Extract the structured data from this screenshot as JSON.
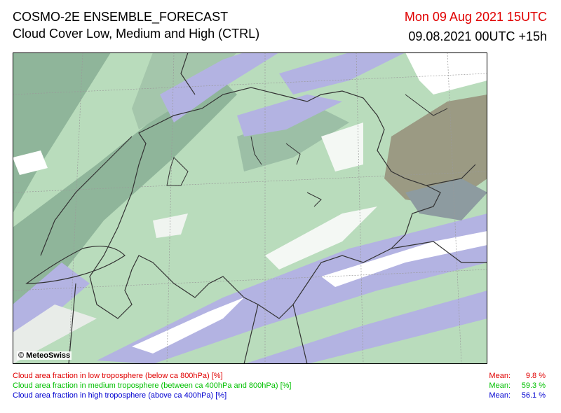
{
  "header": {
    "title": "COSMO-2E ENSEMBLE_FORECAST",
    "subtitle": "Cloud Cover Low, Medium and High (CTRL)",
    "valid_time": "Mon 09 Aug 2021 15UTC",
    "run_time": "09.08.2021 00UTC +15h"
  },
  "map": {
    "credit": "© MeteoSwiss"
  },
  "legend": [
    {
      "label": "Cloud area fraction in low troposphere (below ca 800hPa) [%]",
      "mean_label": "Mean:",
      "mean": "9.8 %",
      "color": "#e00000"
    },
    {
      "label": "Cloud area fraction in medium troposphere (between ca 400hPa and 800hPa) [%]",
      "mean_label": "Mean:",
      "mean": "59.3 %",
      "color": "#00c000"
    },
    {
      "label": "Cloud area fraction in high troposphere (above ca 400hPa) [%]",
      "mean_label": "Mean:",
      "mean": "56.1 %",
      "color": "#0000d0"
    }
  ]
}
